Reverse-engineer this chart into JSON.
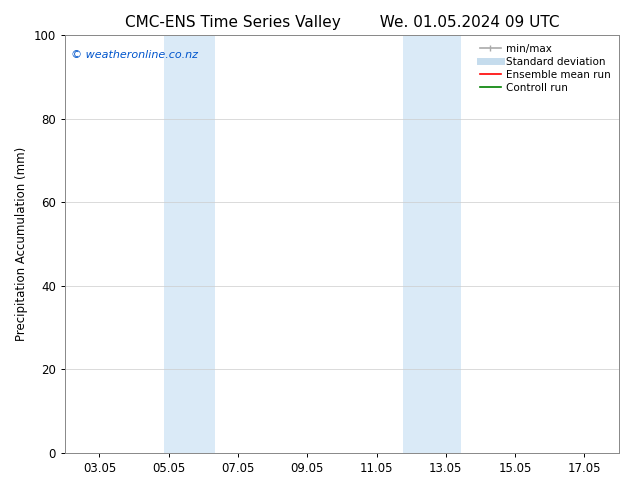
{
  "title_left": "CMC-ENS Time Series Valley",
  "title_right": "We. 01.05.2024 09 UTC",
  "ylabel": "Precipitation Accumulation (mm)",
  "ylim": [
    0,
    100
  ],
  "yticks": [
    0,
    20,
    40,
    60,
    80,
    100
  ],
  "x_tick_labels": [
    "03.05",
    "05.05",
    "07.05",
    "09.05",
    "11.05",
    "13.05",
    "15.05",
    "17.05"
  ],
  "x_tick_positions": [
    2,
    4,
    6,
    8,
    10,
    12,
    14,
    16
  ],
  "xlim": [
    1,
    17
  ],
  "watermark_text": "© weatheronline.co.nz",
  "watermark_color": "#0055cc",
  "background_color": "#ffffff",
  "plot_background": "#ffffff",
  "shaded_bands": [
    {
      "x_start": 3.85,
      "x_end": 5.35,
      "color": "#daeaf7"
    },
    {
      "x_start": 10.75,
      "x_end": 12.45,
      "color": "#daeaf7"
    }
  ],
  "legend_entries": [
    {
      "label": "min/max",
      "color": "#aaaaaa",
      "lw": 1.2
    },
    {
      "label": "Standard deviation",
      "color": "#c5dced",
      "lw": 5
    },
    {
      "label": "Ensemble mean run",
      "color": "#ff0000",
      "lw": 1.2
    },
    {
      "label": "Controll run",
      "color": "#008000",
      "lw": 1.2
    }
  ],
  "title_fontsize": 11,
  "tick_fontsize": 8.5,
  "label_fontsize": 8.5,
  "legend_fontsize": 7.5,
  "watermark_fontsize": 8
}
